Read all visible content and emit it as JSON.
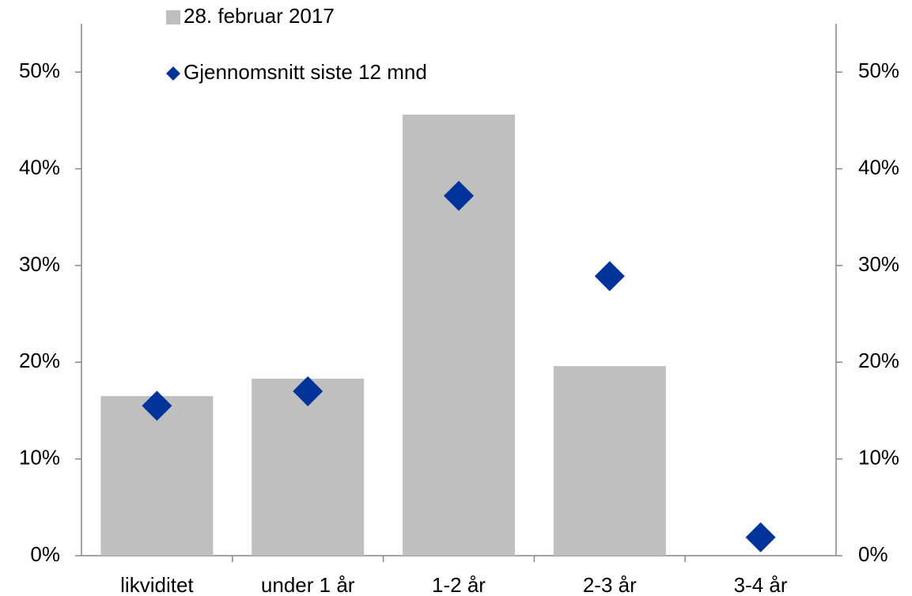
{
  "chart_data": {
    "type": "bar",
    "categories": [
      "likviditet",
      "under 1 år",
      "1-2 år",
      "2-3 år",
      "3-4 år"
    ],
    "series": [
      {
        "name": "28. februar 2017",
        "type": "bar",
        "color": "#bfbfbf",
        "values": [
          16.5,
          18.3,
          45.6,
          19.6,
          0
        ]
      },
      {
        "name": "Gjennomsnitt siste 12 mnd",
        "type": "scatter",
        "marker": "diamond",
        "axis": "y2",
        "color": "#003399",
        "values": [
          15.5,
          17.0,
          37.2,
          28.9,
          1.9
        ]
      }
    ],
    "ylim": [
      0,
      55
    ],
    "yticks": [
      {
        "value": 0,
        "label": "0%"
      },
      {
        "value": 10,
        "label": "10%"
      },
      {
        "value": 20,
        "label": "20%"
      },
      {
        "value": 30,
        "label": "30%"
      },
      {
        "value": 40,
        "label": "40%"
      },
      {
        "value": 50,
        "label": "50%"
      }
    ],
    "y2lim": [
      0,
      55
    ],
    "y2ticks": [
      {
        "value": 0,
        "label": "0%"
      },
      {
        "value": 10,
        "label": "10%"
      },
      {
        "value": 20,
        "label": "20%"
      },
      {
        "value": 30,
        "label": "30%"
      },
      {
        "value": 40,
        "label": "40%"
      },
      {
        "value": 50,
        "label": "50%"
      }
    ],
    "legend": "top-left",
    "grid": false
  }
}
